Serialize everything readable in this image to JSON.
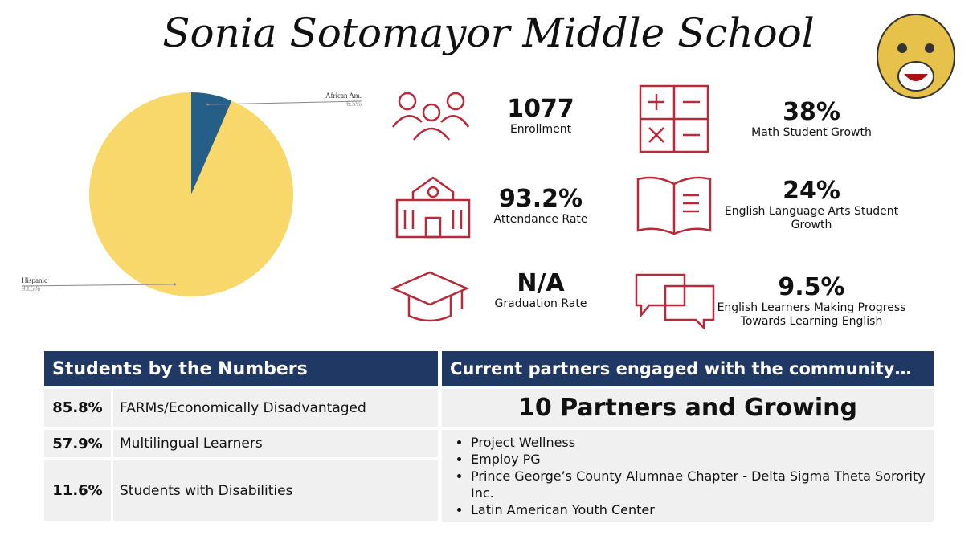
{
  "title": "Sonia Sotomayor Middle School",
  "chart_data": {
    "type": "pie",
    "categories": [
      "African Am.",
      "Hispanic"
    ],
    "values": [
      6.5,
      93.5
    ],
    "value_labels": [
      "6.5%",
      "93.5%"
    ],
    "colors": [
      "#255e86",
      "#f8d76b"
    ]
  },
  "stats": [
    {
      "value": "1077",
      "label": "Enrollment"
    },
    {
      "value": "38%",
      "label": "Math Student Growth"
    },
    {
      "value": "93.2%",
      "label": "Attendance Rate"
    },
    {
      "value": "24%",
      "label": "English Language Arts Student Growth"
    },
    {
      "value": "N/A",
      "label": "Graduation Rate"
    },
    {
      "value": "9.5%",
      "label": "English Learners Making Progress Towards Learning English"
    }
  ],
  "students_table": {
    "header": "Students by the Numbers",
    "rows": [
      [
        "85.8%",
        "FARMs/Economically Disadvantaged"
      ],
      [
        "57.9%",
        "Multilingual Learners"
      ],
      [
        "11.6%",
        "Students with Disabilities"
      ]
    ]
  },
  "partners": {
    "header": "Current partners engaged with the community…",
    "headline": "10 Partners and Growing",
    "items": [
      "Project Wellness",
      "Employ PG",
      "Prince George’s County Alumnae Chapter - Delta Sigma Theta Sorority Inc.",
      "Latin American Youth Center"
    ]
  }
}
